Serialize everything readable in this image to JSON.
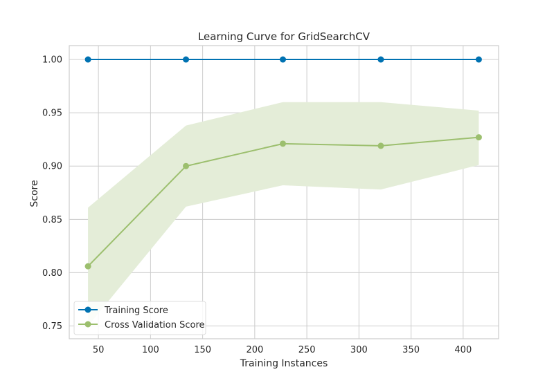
{
  "chart_data": {
    "type": "line",
    "title": "Learning Curve for GridSearchCV",
    "xlabel": "Training Instances",
    "ylabel": "Score",
    "xlim": [
      22,
      434
    ],
    "ylim": [
      0.738,
      1.013
    ],
    "xticks": [
      50,
      100,
      150,
      200,
      250,
      300,
      350,
      400
    ],
    "yticks": [
      0.75,
      0.8,
      0.85,
      0.9,
      0.95,
      1.0
    ],
    "grid": true,
    "legend_position": "lower-left",
    "x": [
      40,
      134,
      227,
      321,
      415
    ],
    "series": [
      {
        "name": "Training Score",
        "color": "#0072B2",
        "values": [
          1.0,
          1.0,
          1.0,
          1.0,
          1.0
        ],
        "band_lower": [
          1.0,
          1.0,
          1.0,
          1.0,
          1.0
        ],
        "band_upper": [
          1.0,
          1.0,
          1.0,
          1.0,
          1.0
        ]
      },
      {
        "name": "Cross Validation Score",
        "color": "#9CBF6E",
        "band_color": "#E4EDD8",
        "values": [
          0.806,
          0.9,
          0.921,
          0.919,
          0.927
        ],
        "band_lower": [
          0.75,
          0.862,
          0.882,
          0.878,
          0.901
        ],
        "band_upper": [
          0.861,
          0.938,
          0.96,
          0.96,
          0.952
        ]
      }
    ]
  }
}
